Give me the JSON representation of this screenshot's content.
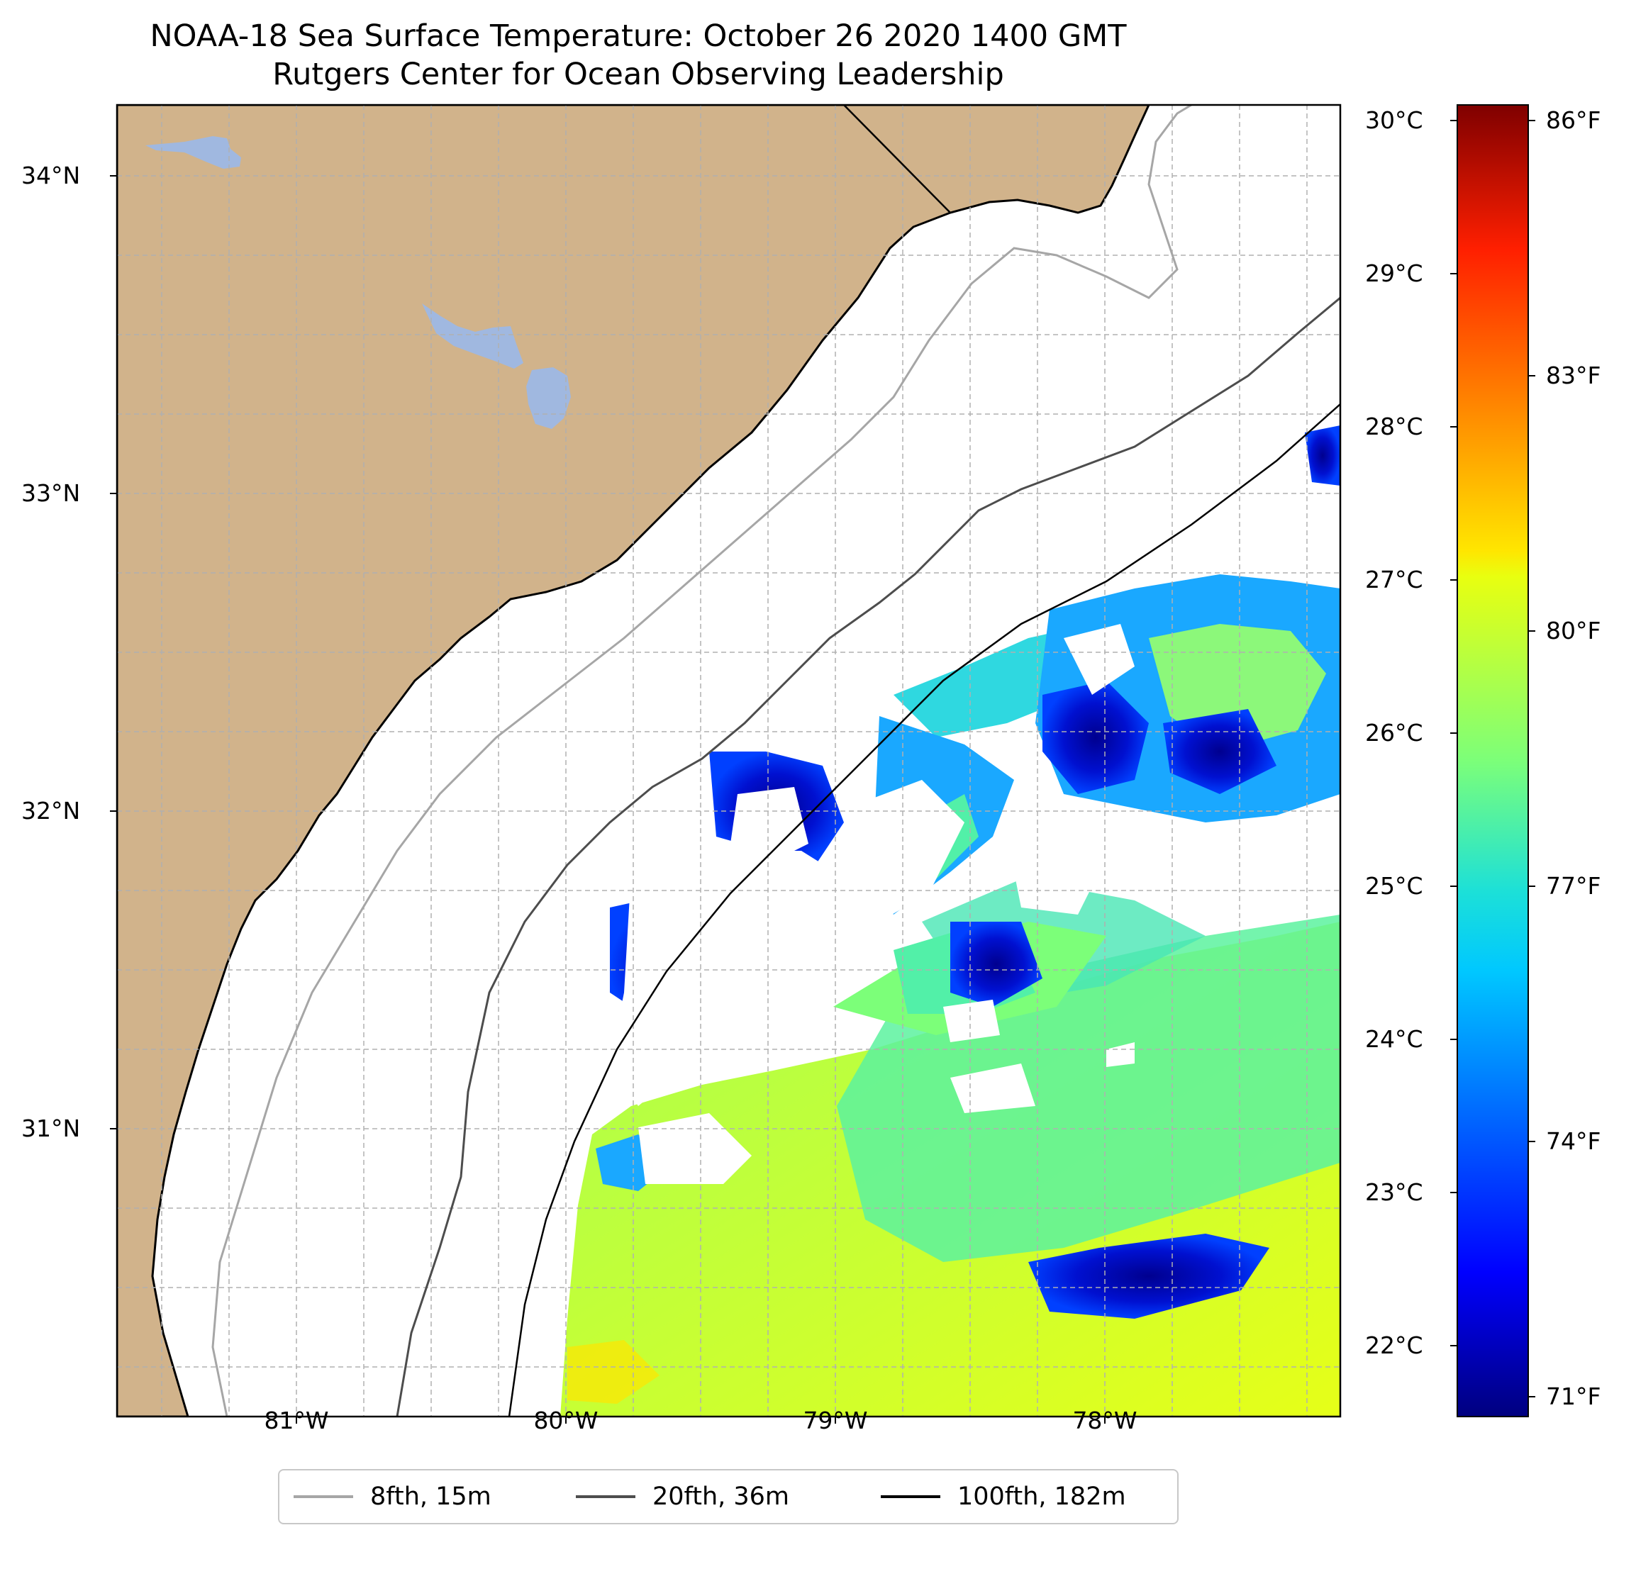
{
  "title_line1": "NOAA-18 Sea Surface Temperature: October 26 2020 1400 GMT",
  "title_line2": "Rutgers Center for Ocean Observing Leadership",
  "map": {
    "lat_ticks": [
      "34°N",
      "33°N",
      "32°N",
      "31°N"
    ],
    "lon_ticks": [
      "81°W",
      "80°W",
      "79°W",
      "78°W"
    ],
    "colors": {
      "land": "#d1b38b",
      "water_body": "#a0b8e0",
      "ocean": "#ffffff",
      "coastline": "#000000",
      "grid": "#b0b0b0"
    },
    "contours": [
      {
        "label": "8fth, 15m",
        "color": "#a6a6a6"
      },
      {
        "label": "20fth, 36m",
        "color": "#4d4d4d"
      },
      {
        "label": "100fth, 182m",
        "color": "#000000"
      }
    ]
  },
  "colorbar": {
    "celsius_ticks": [
      "30°C",
      "29°C",
      "28°C",
      "27°C",
      "26°C",
      "25°C",
      "24°C",
      "23°C",
      "22°C"
    ],
    "fahrenheit_ticks": [
      "86°F",
      "83°F",
      "80°F",
      "77°F",
      "74°F",
      "71°F"
    ],
    "colormap": "jet",
    "range_c": [
      21.6,
      30.2
    ]
  }
}
